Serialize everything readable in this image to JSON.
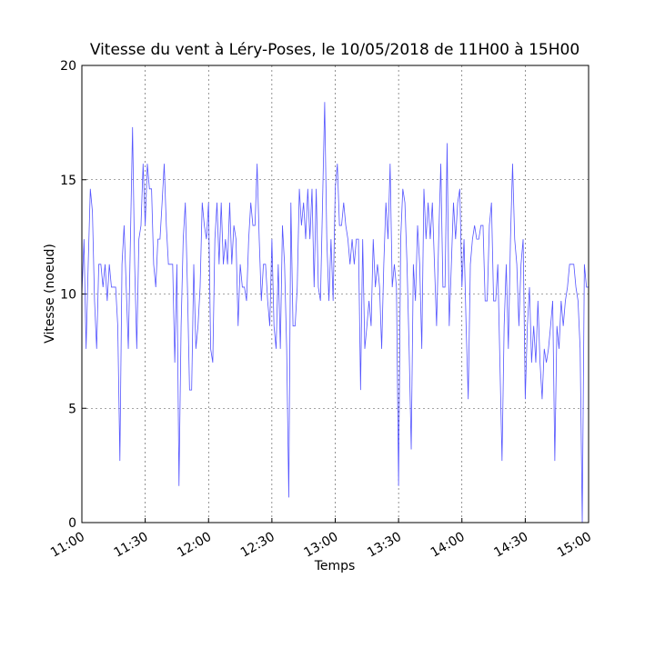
{
  "chart_data": {
    "type": "line",
    "title": "Vitesse du vent à Léry-Poses, le 10/05/2018 de 11H00 à 15H00",
    "x_label": "Temps",
    "y_label": "Vitesse (noeud)",
    "color": "#5555ff",
    "grid": true,
    "xlim": [
      660,
      900
    ],
    "xticks": [
      {
        "value": 660,
        "label": "11:00"
      },
      {
        "value": 690,
        "label": "11:30"
      },
      {
        "value": 720,
        "label": "12:00"
      },
      {
        "value": 750,
        "label": "12:30"
      },
      {
        "value": 780,
        "label": "13:00"
      },
      {
        "value": 810,
        "label": "13:30"
      },
      {
        "value": 840,
        "label": "14:00"
      },
      {
        "value": 870,
        "label": "14:30"
      },
      {
        "value": 900,
        "label": "15:00"
      }
    ],
    "ylim": [
      0,
      20
    ],
    "yticks": [
      0,
      5,
      10,
      15,
      20
    ],
    "x": [
      660,
      661,
      662,
      663,
      664,
      665,
      666,
      667,
      668,
      669,
      670,
      671,
      672,
      673,
      674,
      675,
      676,
      677,
      678,
      679,
      680,
      681,
      682,
      683,
      684,
      685,
      686,
      687,
      688,
      689,
      690,
      691,
      692,
      693,
      694,
      695,
      696,
      697,
      698,
      699,
      700,
      701,
      702,
      703,
      704,
      705,
      706,
      707,
      708,
      709,
      710,
      711,
      712,
      713,
      714,
      715,
      716,
      717,
      718,
      719,
      720,
      721,
      722,
      723,
      724,
      725,
      726,
      727,
      728,
      729,
      730,
      731,
      732,
      733,
      734,
      735,
      736,
      737,
      738,
      739,
      740,
      741,
      742,
      743,
      744,
      745,
      746,
      747,
      748,
      749,
      750,
      751,
      752,
      753,
      754,
      755,
      756,
      757,
      758,
      759,
      760,
      761,
      762,
      763,
      764,
      765,
      766,
      767,
      768,
      769,
      770,
      771,
      772,
      773,
      774,
      775,
      776,
      777,
      778,
      779,
      780,
      781,
      782,
      783,
      784,
      785,
      786,
      787,
      788,
      789,
      790,
      791,
      792,
      793,
      794,
      795,
      796,
      797,
      798,
      799,
      800,
      801,
      802,
      803,
      804,
      805,
      806,
      807,
      808,
      809,
      810,
      811,
      812,
      813,
      814,
      815,
      816,
      817,
      818,
      819,
      820,
      821,
      822,
      823,
      824,
      825,
      826,
      827,
      828,
      829,
      830,
      831,
      832,
      833,
      834,
      835,
      836,
      837,
      838,
      839,
      840,
      841,
      842,
      843,
      844,
      845,
      846,
      847,
      848,
      849,
      850,
      851,
      852,
      853,
      854,
      855,
      856,
      857,
      858,
      859,
      860,
      861,
      862,
      863,
      864,
      865,
      866,
      867,
      868,
      869,
      870,
      871,
      872,
      873,
      874,
      875,
      876,
      877,
      878,
      879,
      880,
      881,
      882,
      883,
      884,
      885,
      886,
      887,
      888,
      889,
      890,
      891,
      892,
      893,
      894,
      895,
      896,
      897,
      898,
      899,
      900
    ],
    "values": [
      10,
      12.4,
      7.6,
      11.3,
      14.6,
      13.6,
      9.7,
      7.6,
      11.3,
      11.3,
      10.3,
      11.3,
      9.7,
      11.3,
      10.3,
      10.3,
      10.3,
      8.6,
      2.7,
      11.3,
      13.0,
      10.3,
      7.6,
      12.4,
      17.3,
      11.3,
      7.6,
      12.4,
      13.0,
      15.7,
      13.0,
      15.7,
      14.6,
      14.6,
      11.3,
      10.3,
      12.4,
      12.4,
      14.0,
      15.7,
      13.0,
      11.3,
      11.3,
      11.3,
      7.0,
      11.3,
      1.6,
      8.6,
      12.4,
      14.0,
      10.3,
      5.8,
      5.8,
      11.3,
      7.6,
      8.6,
      10.3,
      14.0,
      13.0,
      12.4,
      14.0,
      7.6,
      7.0,
      12.4,
      14.0,
      11.3,
      14.0,
      11.3,
      12.4,
      11.3,
      14.0,
      11.3,
      13.0,
      12.4,
      8.6,
      11.3,
      10.3,
      10.3,
      9.7,
      12.4,
      14.0,
      13.0,
      13.0,
      15.7,
      12.4,
      9.7,
      11.3,
      11.3,
      9.7,
      8.6,
      12.4,
      8.6,
      7.6,
      11.3,
      7.6,
      13.0,
      11.3,
      7.6,
      1.1,
      14.0,
      8.6,
      8.6,
      10.3,
      14.6,
      13.0,
      14.0,
      12.4,
      14.6,
      12.4,
      14.6,
      10.3,
      14.6,
      10.3,
      9.7,
      14.0,
      18.4,
      12.4,
      9.7,
      12.4,
      9.7,
      14.6,
      15.7,
      13.0,
      13.0,
      14.0,
      13.0,
      12.4,
      11.3,
      12.4,
      11.3,
      12.4,
      12.4,
      5.8,
      12.4,
      7.6,
      8.6,
      9.7,
      8.6,
      12.4,
      10.3,
      11.3,
      10.3,
      7.6,
      11.3,
      14.0,
      12.4,
      15.7,
      10.3,
      11.3,
      10.3,
      1.6,
      12.4,
      14.6,
      14.0,
      11.3,
      7.6,
      3.2,
      11.3,
      9.7,
      13.0,
      11.3,
      7.6,
      14.6,
      12.4,
      14.0,
      12.4,
      14.0,
      11.3,
      8.6,
      12.4,
      15.7,
      10.3,
      10.3,
      16.6,
      8.6,
      11.3,
      14.0,
      12.4,
      14.0,
      14.6,
      10.3,
      12.4,
      8.6,
      5.4,
      11.3,
      12.4,
      13.0,
      12.4,
      12.4,
      13.0,
      13.0,
      9.7,
      9.7,
      13.0,
      14.0,
      9.7,
      9.7,
      11.3,
      7.0,
      2.7,
      8.6,
      11.3,
      7.6,
      12.4,
      15.7,
      12.4,
      11.3,
      8.6,
      11.3,
      12.4,
      5.4,
      8.6,
      10.3,
      7.0,
      8.6,
      7.0,
      9.7,
      7.0,
      5.4,
      7.6,
      7.0,
      7.6,
      8.6,
      9.7,
      2.7,
      8.6,
      7.6,
      9.7,
      8.6,
      9.7,
      10.3,
      11.3,
      11.3,
      11.3,
      10.3,
      9.7,
      7.6,
      0.0,
      11.3,
      10.3,
      10.3
    ]
  }
}
